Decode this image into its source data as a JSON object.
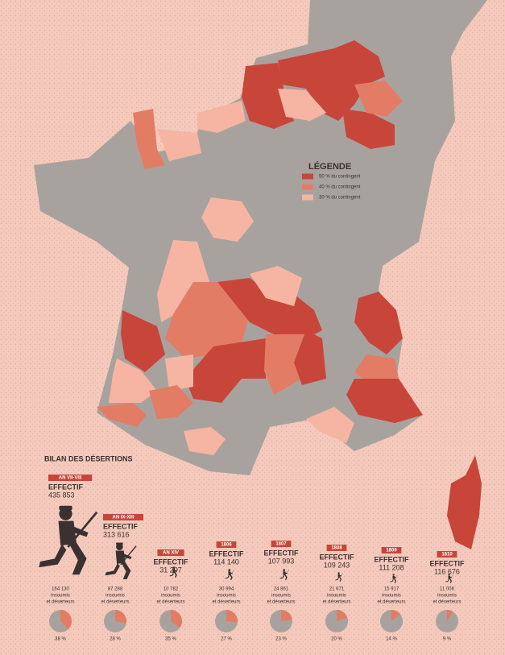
{
  "legend": {
    "title": "LÉGENDE",
    "items": [
      {
        "label": "50 % du contingent",
        "color": "#c8453a"
      },
      {
        "label": "40 % du contingent",
        "color": "#e37c65"
      },
      {
        "label": "30 % du contingent",
        "color": "#f6b5a2"
      }
    ]
  },
  "bilan": {
    "title": "BILAN DES DÉSERTIONS",
    "effectif_label": "EFFECTIF",
    "deserters_caption": [
      "insoumis",
      "et déserteurs"
    ],
    "periods": [
      {
        "period": "AN VII-VIII",
        "effectif": "435 853",
        "deserters": "164 130",
        "percent": 38,
        "percent_label": "38 %"
      },
      {
        "period": "AN IX-XIII",
        "effectif": "313 616",
        "deserters": "87 288",
        "percent": 28,
        "percent_label": "28 %"
      },
      {
        "period": "AN XIV",
        "effectif": "31 207",
        "deserters": "10 782",
        "percent": 35,
        "percent_label": "35 %"
      },
      {
        "period": "1806",
        "effectif": "114 140",
        "deserters": "30 994",
        "percent": 27,
        "percent_label": "27 %"
      },
      {
        "period": "1807",
        "effectif": "107 993",
        "deserters": "24 861",
        "percent": 23,
        "percent_label": "23 %"
      },
      {
        "period": "1808",
        "effectif": "109 243",
        "deserters": "21 671",
        "percent": 20,
        "percent_label": "20 %"
      },
      {
        "period": "1809",
        "effectif": "111 208",
        "deserters": "15 917",
        "percent": 14,
        "percent_label": "14 %"
      },
      {
        "period": "1810",
        "effectif": "116 676",
        "deserters": "11 006",
        "percent": 9,
        "percent_label": "9 %"
      }
    ]
  }
}
